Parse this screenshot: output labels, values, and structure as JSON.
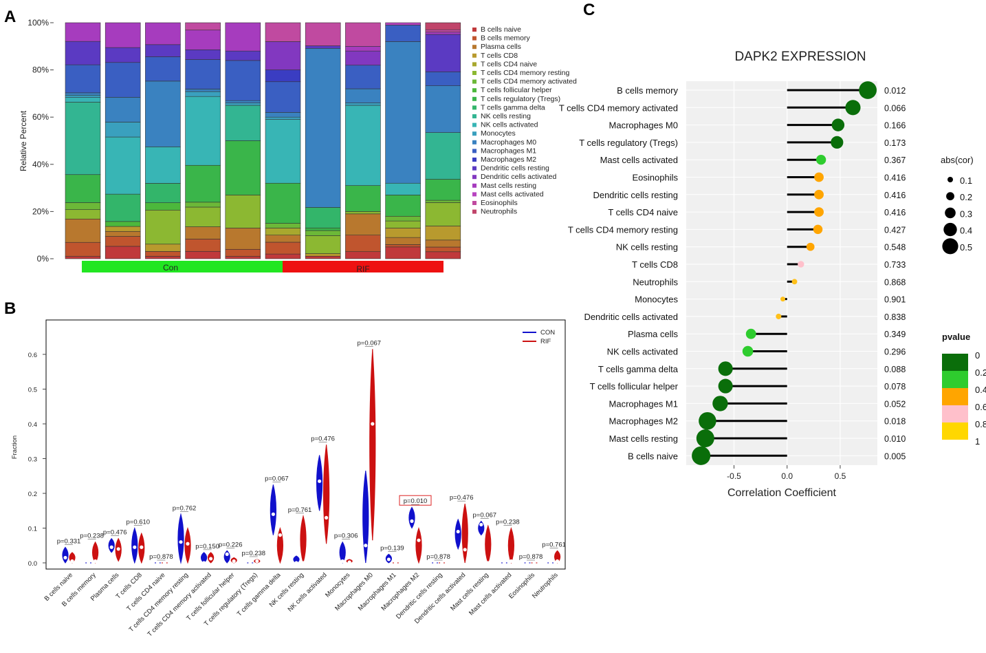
{
  "panel_labels": [
    "A",
    "B",
    "C"
  ],
  "chart_data": [
    {
      "id": "A",
      "type": "bar",
      "stacked": true,
      "ylabel": "Relative Percent",
      "y_ticks": [
        "0%",
        "20%",
        "40%",
        "60%",
        "80%",
        "100%"
      ],
      "ylim": [
        0,
        100
      ],
      "groups": [
        {
          "name": "Con",
          "color": "#22e622",
          "samples": 5
        },
        {
          "name": "RIF",
          "color": "#ee1111",
          "samples": 5
        }
      ],
      "legend": [
        {
          "name": "B cells naive",
          "color": "#c0393b"
        },
        {
          "name": "B cells memory",
          "color": "#c0552e"
        },
        {
          "name": "Plasma cells",
          "color": "#b8782e"
        },
        {
          "name": "T cells CD8",
          "color": "#b89a2e"
        },
        {
          "name": "T cells CD4 naive",
          "color": "#a8a82e"
        },
        {
          "name": "T cells CD4 memory resting",
          "color": "#8cb832"
        },
        {
          "name": "T cells CD4 memory activated",
          "color": "#6cb838"
        },
        {
          "name": "T cells follicular helper",
          "color": "#4cb83c"
        },
        {
          "name": "T cells regulatory (Tregs)",
          "color": "#3ab54a"
        },
        {
          "name": "T cells gamma delta",
          "color": "#33b56a"
        },
        {
          "name": "NK cells resting",
          "color": "#33b592"
        },
        {
          "name": "NK cells activated",
          "color": "#38b5b5"
        },
        {
          "name": "Monocytes",
          "color": "#3aa0be"
        },
        {
          "name": "Macrophages M0",
          "color": "#3a82c0"
        },
        {
          "name": "Macrophages M1",
          "color": "#3a5fc2"
        },
        {
          "name": "Macrophages M2",
          "color": "#3a3dc2"
        },
        {
          "name": "Dendritic cells resting",
          "color": "#5b3ac2"
        },
        {
          "name": "Dendritic cells activated",
          "color": "#8238c0"
        },
        {
          "name": "Mast cells resting",
          "color": "#a63cbe"
        },
        {
          "name": "Mast cells activated",
          "color": "#b844c0"
        },
        {
          "name": "Eosinophils",
          "color": "#c04aa0"
        },
        {
          "name": "Neutrophils",
          "color": "#c0446a"
        }
      ],
      "samples": [
        [
          1,
          6,
          10,
          4,
          0,
          0,
          3,
          0,
          0,
          12,
          0,
          31,
          1,
          2,
          1,
          11,
          0,
          10,
          0,
          9,
          0,
          0
        ],
        [
          5,
          3,
          3,
          2,
          0,
          0,
          0,
          2,
          0,
          11,
          0,
          23,
          6,
          10,
          0,
          14,
          0,
          6,
          0,
          9,
          0,
          0
        ],
        [
          0,
          2,
          4,
          0,
          14,
          0,
          0,
          0,
          3,
          8,
          0,
          15,
          0,
          27,
          0,
          10,
          0,
          5,
          0,
          8,
          0,
          0
        ],
        [
          0,
          3,
          5,
          0,
          8,
          0,
          1,
          0,
          2,
          15,
          0,
          28,
          0,
          2,
          0,
          10,
          2,
          0,
          2,
          6,
          0,
          0
        ],
        [
          0,
          2,
          9,
          0,
          14,
          0,
          0,
          0,
          23,
          0,
          2,
          14,
          1,
          0,
          5,
          8,
          0,
          0,
          0,
          11,
          0,
          0
        ],
        [
          0,
          0,
          5,
          0,
          3,
          0,
          0,
          2,
          0,
          17,
          0,
          27,
          0,
          0,
          0,
          12,
          2,
          11,
          0,
          0,
          19,
          0.6
        ],
        [
          0,
          0,
          0,
          1,
          0,
          0,
          0,
          3,
          2,
          2,
          8,
          0,
          0,
          62,
          0,
          0,
          0,
          0,
          0,
          0,
          0,
          0
        ],
        [
          0,
          0,
          10,
          0,
          0,
          0,
          0,
          0,
          10,
          0,
          0,
          0,
          0,
          0,
          0,
          15,
          0,
          0,
          0,
          0,
          0,
          0
        ],
        [
          0,
          0,
          0,
          0,
          0,
          0,
          0,
          0,
          0,
          0,
          0,
          5,
          0,
          60,
          0,
          6,
          0,
          0,
          0,
          0,
          0,
          0
        ],
        [
          0,
          0,
          0,
          0,
          0,
          0,
          0,
          0,
          0,
          0,
          0,
          0,
          0,
          0,
          0,
          0,
          0,
          0,
          0,
          0,
          0,
          0
        ]
      ],
      "note": "samples approximate; last rows filled by drawing script from estimated stacks"
    },
    {
      "id": "B",
      "type": "violin",
      "ylabel": "Fraction",
      "ylim": [
        0,
        0.68
      ],
      "y_ticks": [
        "0.0",
        "0.1",
        "0.2",
        "0.3",
        "0.4",
        "0.5",
        "0.6"
      ],
      "legend": [
        {
          "name": "CON",
          "color": "#1111cc"
        },
        {
          "name": "RIF",
          "color": "#cc1111"
        }
      ],
      "categories": [
        {
          "name": "B cells naive",
          "p": "p=0.331",
          "con": [
            0,
            0.045,
            0.015
          ],
          "rif": [
            0,
            0.03,
            0.005
          ]
        },
        {
          "name": "B cells memory",
          "p": "p=0.238",
          "con": [
            0,
            0.0,
            0.0
          ],
          "rif": [
            0,
            0.06,
            0.005
          ]
        },
        {
          "name": "Plasma cells",
          "p": "p=0.476",
          "con": [
            0.03,
            0.07,
            0.045
          ],
          "rif": [
            0.005,
            0.07,
            0.04
          ]
        },
        {
          "name": "T cells CD8",
          "p": "p=0.610",
          "con": [
            0,
            0.1,
            0.045
          ],
          "rif": [
            0,
            0.085,
            0.045
          ]
        },
        {
          "name": "T cells CD4 naive",
          "p": "p=0.878",
          "con": [
            0,
            0.0,
            0.0
          ],
          "rif": [
            0,
            0.0,
            0.0
          ]
        },
        {
          "name": "T cells CD4 memory resting",
          "p": "p=0.762",
          "con": [
            0,
            0.14,
            0.06
          ],
          "rif": [
            0,
            0.1,
            0.055
          ]
        },
        {
          "name": "T cells CD4 memory activated",
          "p": "p=0.150",
          "con": [
            0,
            0.03,
            0.0
          ],
          "rif": [
            0,
            0.03,
            0.012
          ]
        },
        {
          "name": "T cells follicular helper",
          "p": "p=0.226",
          "con": [
            0,
            0.035,
            0.025
          ],
          "rif": [
            0,
            0.015,
            0.005
          ]
        },
        {
          "name": "T cells regulatory (Tregs)",
          "p": "p=0.238",
          "con": [
            0,
            0.0,
            0.0
          ],
          "rif": [
            0,
            0.01,
            0.005
          ]
        },
        {
          "name": "T cells gamma delta",
          "p": "p=0.067",
          "con": [
            0.08,
            0.225,
            0.14
          ],
          "rif": [
            0,
            0.1,
            0.08
          ]
        },
        {
          "name": "NK cells resting",
          "p": "p=0.761",
          "con": [
            0,
            0.02,
            0.0
          ],
          "rif": [
            0,
            0.135,
            0.0
          ]
        },
        {
          "name": "NK cells activated",
          "p": "p=0.476",
          "con": [
            0.15,
            0.31,
            0.235
          ],
          "rif": [
            0.055,
            0.34,
            0.13
          ]
        },
        {
          "name": "Monocytes",
          "p": "p=0.306",
          "con": [
            0,
            0.06,
            0.005
          ],
          "rif": [
            0,
            0.01,
            0.002
          ]
        },
        {
          "name": "Macrophages M0",
          "p": "p=0.067",
          "con": [
            0,
            0.265,
            0.05
          ],
          "rif": [
            0.065,
            0.615,
            0.4
          ]
        },
        {
          "name": "Macrophages M1",
          "p": "p=0.139",
          "con": [
            0,
            0.025,
            0.01
          ],
          "rif": [
            0,
            0.0,
            0.0
          ]
        },
        {
          "name": "Macrophages M2",
          "p": "p=0.010",
          "con": [
            0.1,
            0.16,
            0.12
          ],
          "rif": [
            0,
            0.1,
            0.065
          ]
        },
        {
          "name": "Dendritic cells resting",
          "p": "p=0.878",
          "con": [
            0,
            0.0,
            0.0
          ],
          "rif": [
            0,
            0.0,
            0.0
          ]
        },
        {
          "name": "Dendritic cells activated",
          "p": "p=0.476",
          "con": [
            0.04,
            0.125,
            0.09
          ],
          "rif": [
            0,
            0.17,
            0.038
          ]
        },
        {
          "name": "Mast cells resting",
          "p": "p=0.067",
          "con": [
            0.08,
            0.12,
            0.11
          ],
          "rif": [
            0,
            0.107,
            0.0
          ]
        },
        {
          "name": "Mast cells activated",
          "p": "p=0.238",
          "con": [
            0,
            0.0,
            0.0
          ],
          "rif": [
            0,
            0.1,
            0.005
          ]
        },
        {
          "name": "Eosinophils",
          "p": "p=0.878",
          "con": [
            0,
            0.0,
            0.0
          ],
          "rif": [
            0,
            0.0,
            0.0
          ]
        },
        {
          "name": "Neutrophils",
          "p": "p=0.761",
          "con": [
            0,
            0.0,
            0.0
          ],
          "rif": [
            0,
            0.035,
            0.005
          ]
        }
      ],
      "boxed_p": "p=0.010"
    },
    {
      "id": "C",
      "type": "lollipop",
      "title": "DAPK2 EXPRESSION",
      "xlabel": "Correlation Coefficient",
      "xlim": [
        -0.95,
        0.85
      ],
      "x_ticks": [
        "-0.5",
        "0.0",
        "0.5"
      ],
      "x_tick_values": [
        -0.5,
        0.0,
        0.5
      ],
      "size_legend_title": "abs(cor)",
      "size_legend": [
        "0.1",
        "0.2",
        "0.3",
        "0.4",
        "0.5"
      ],
      "color_legend_title": "pvalue",
      "color_legend": [
        {
          "label": "0",
          "color": "#0a6e0a"
        },
        {
          "label": "0.2",
          "color": "#2ecc2e"
        },
        {
          "label": "0.4",
          "color": "#ffa500"
        },
        {
          "label": "0.6",
          "color": "#ffc0cb"
        },
        {
          "label": "0.8",
          "color": "#ffd700"
        },
        {
          "label": "1",
          "color": "#ffffff"
        }
      ],
      "rows": [
        {
          "name": "B cells memory",
          "cor": 0.76,
          "p": "0.012",
          "color": "#0a6e0a",
          "red": true
        },
        {
          "name": "T cells CD4 memory activated",
          "cor": 0.62,
          "p": "0.066",
          "color": "#0a6e0a",
          "red": false
        },
        {
          "name": "Macrophages M0",
          "cor": 0.48,
          "p": "0.166",
          "color": "#0a6e0a",
          "red": false
        },
        {
          "name": "T cells regulatory (Tregs)",
          "cor": 0.47,
          "p": "0.173",
          "color": "#0a6e0a",
          "red": false
        },
        {
          "name": "Mast cells activated",
          "cor": 0.32,
          "p": "0.367",
          "color": "#2ecc2e",
          "red": false
        },
        {
          "name": "Eosinophils",
          "cor": 0.3,
          "p": "0.416",
          "color": "#ffa500",
          "red": false
        },
        {
          "name": "Dendritic cells resting",
          "cor": 0.3,
          "p": "0.416",
          "color": "#ffa500",
          "red": false
        },
        {
          "name": "T cells CD4 naive",
          "cor": 0.3,
          "p": "0.416",
          "color": "#ffa500",
          "red": false
        },
        {
          "name": "T cells CD4 memory resting",
          "cor": 0.29,
          "p": "0.427",
          "color": "#ffa500",
          "red": false
        },
        {
          "name": "NK cells resting",
          "cor": 0.22,
          "p": "0.548",
          "color": "#ffa500",
          "red": false
        },
        {
          "name": "T cells CD8",
          "cor": 0.13,
          "p": "0.733",
          "color": "#ffc0cb",
          "red": false
        },
        {
          "name": "Neutrophils",
          "cor": 0.07,
          "p": "0.868",
          "color": "#ffc01a",
          "red": false
        },
        {
          "name": "Monocytes",
          "cor": -0.04,
          "p": "0.901",
          "color": "#ffc01a",
          "red": false
        },
        {
          "name": "Dendritic cells activated",
          "cor": -0.08,
          "p": "0.838",
          "color": "#ffc01a",
          "red": false
        },
        {
          "name": "Plasma cells",
          "cor": -0.34,
          "p": "0.349",
          "color": "#2ecc2e",
          "red": false
        },
        {
          "name": "NK cells activated",
          "cor": -0.37,
          "p": "0.296",
          "color": "#2ecc2e",
          "red": false
        },
        {
          "name": "T cells gamma delta",
          "cor": -0.58,
          "p": "0.088",
          "color": "#0a6e0a",
          "red": false
        },
        {
          "name": "T cells follicular helper",
          "cor": -0.58,
          "p": "0.078",
          "color": "#0a6e0a",
          "red": false
        },
        {
          "name": "Macrophages M1",
          "cor": -0.63,
          "p": "0.052",
          "color": "#0a6e0a",
          "red": false
        },
        {
          "name": "Macrophages M2",
          "cor": -0.75,
          "p": "0.018",
          "color": "#0a6e0a",
          "red": true
        },
        {
          "name": "Mast cells resting",
          "cor": -0.77,
          "p": "0.010",
          "color": "#0a6e0a",
          "red": true
        },
        {
          "name": "B cells naive",
          "cor": -0.81,
          "p": "0.005",
          "color": "#0a6e0a",
          "red": true
        }
      ]
    }
  ]
}
